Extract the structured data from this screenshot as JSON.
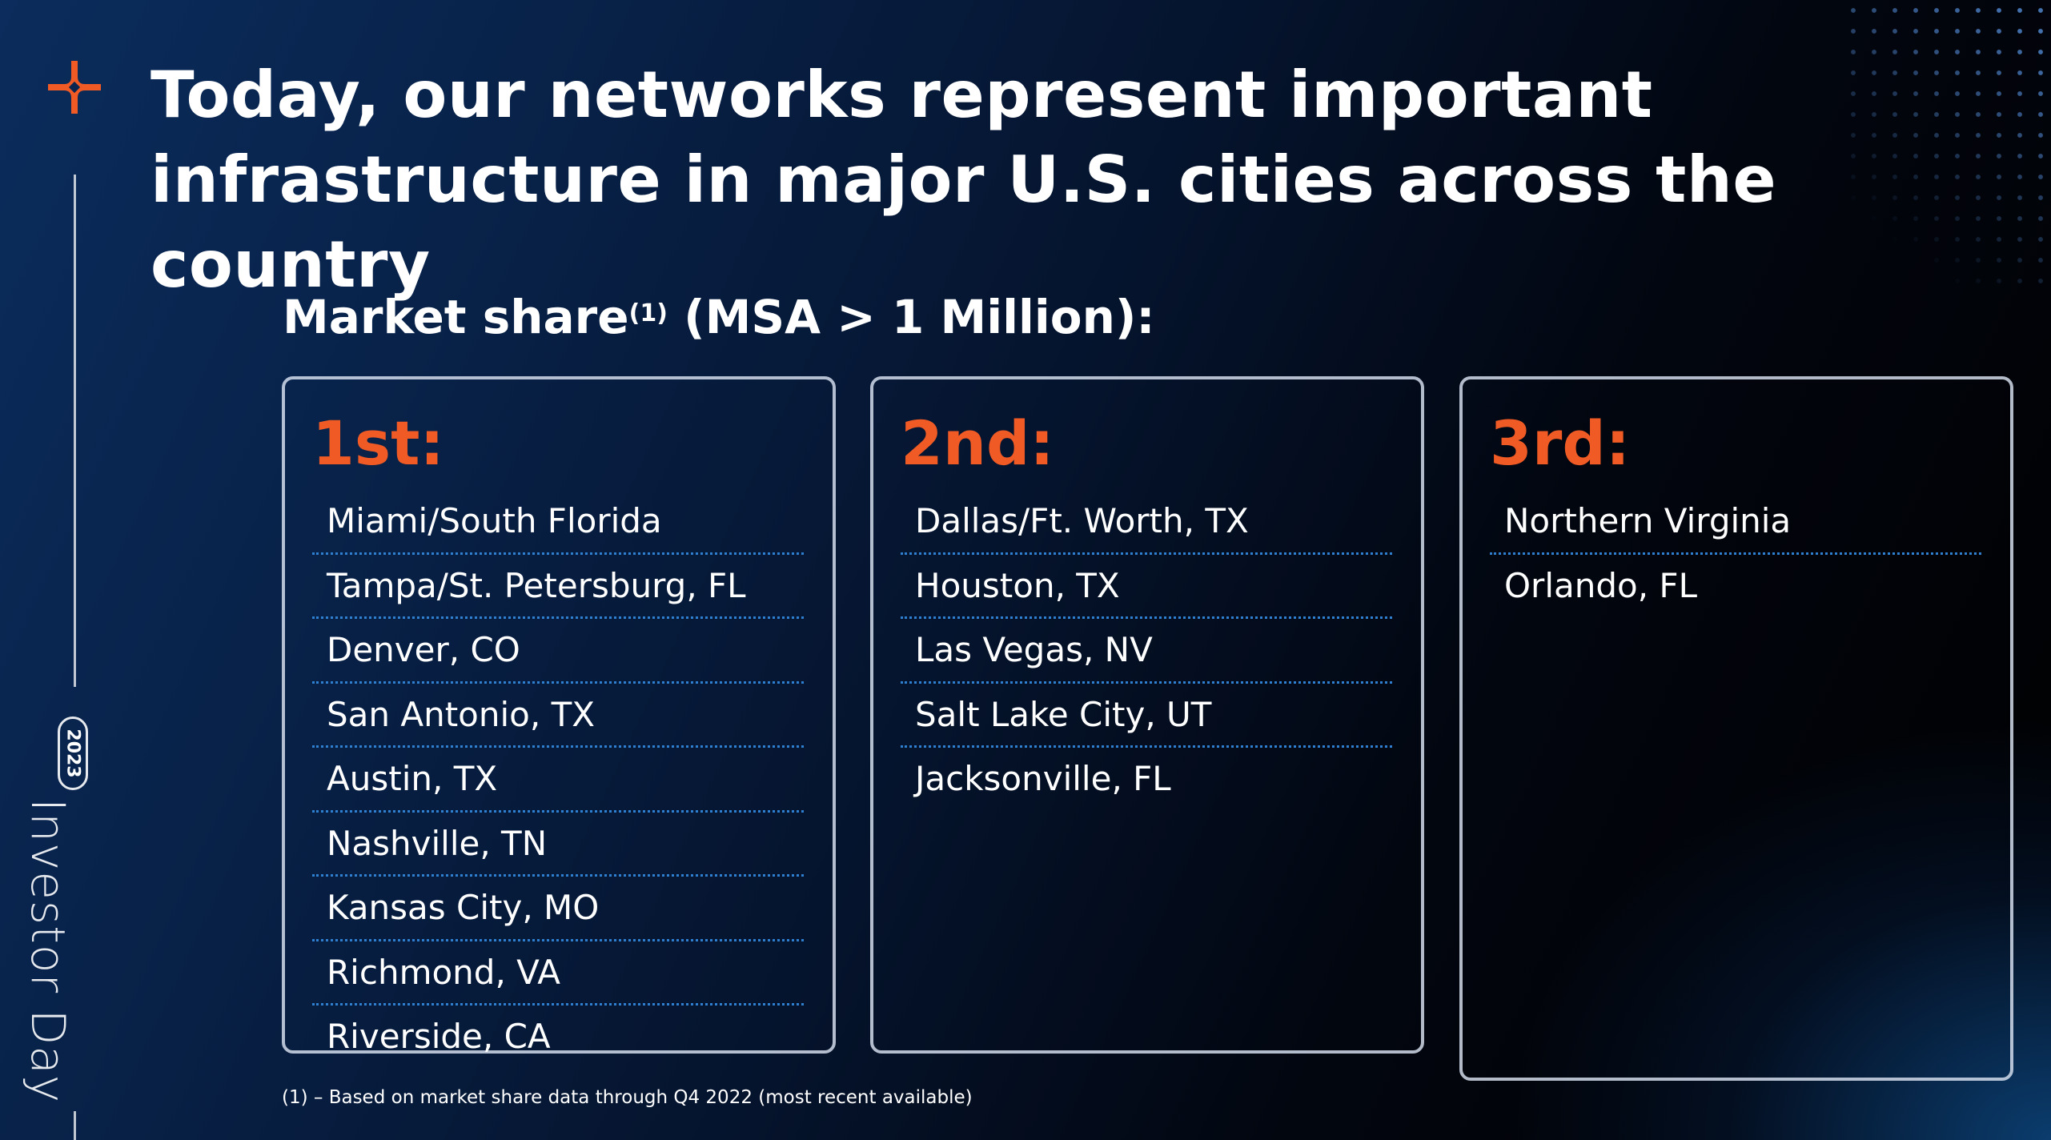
{
  "slide": {
    "title_line1": "Today, our networks represent important",
    "title_line2": "infrastructure in major U.S. cities across the country",
    "subtitle_text": "Market share",
    "subtitle_superscript": "(1)",
    "subtitle_suffix": " (MSA > 1 Million):",
    "footnote": "(1) – Based on market share data through Q4 2022 (most recent available)"
  },
  "rail": {
    "year": "2023",
    "event": "Investor Day",
    "logo_icon": "brand-cross-icon"
  },
  "colors": {
    "accent_orange": "#f05a24",
    "divider_blue": "#2f7fd1",
    "background_navy": "#082249"
  },
  "markets": [
    {
      "rank": "1st:",
      "cities": [
        "Miami/South Florida",
        "Tampa/St. Petersburg, FL",
        "Denver, CO",
        "San Antonio, TX",
        "Austin, TX",
        "Nashville, TN",
        "Kansas City, MO",
        "Richmond, VA",
        "Riverside, CA"
      ]
    },
    {
      "rank": "2nd:",
      "cities": [
        "Dallas/Ft. Worth, TX",
        "Houston, TX",
        "Las Vegas, NV",
        "Salt Lake City, UT",
        "Jacksonville, FL"
      ]
    },
    {
      "rank": "3rd:",
      "cities": [
        "Northern Virginia",
        "Orlando, FL"
      ]
    }
  ]
}
